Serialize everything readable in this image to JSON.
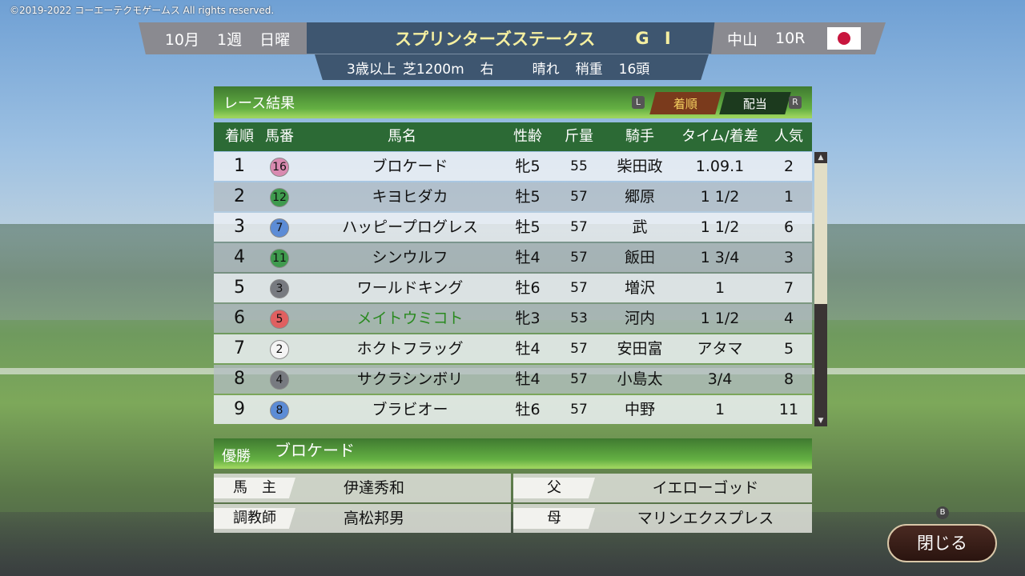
{
  "copyright": "©2019-2022 コーエーテクモゲームス All rights reserved.",
  "header": {
    "month": "10月",
    "week": "1週",
    "day": "日曜",
    "race_name": "スプリンターズステークス",
    "grade": "G I",
    "conditions": {
      "age": "3歳以上",
      "surface": "芝1200m",
      "direction": "右",
      "weather": "晴れ",
      "going": "稍重",
      "runners": "16頭"
    },
    "venue": "中山",
    "race_no": "10R",
    "flag": "japan-flag"
  },
  "panel": {
    "title": "レース結果",
    "btn_l": "L",
    "btn_r": "R",
    "tabs": [
      {
        "label": "着順",
        "active": true
      },
      {
        "label": "配当",
        "active": false
      }
    ]
  },
  "table": {
    "headers": [
      "着順",
      "馬番",
      "馬名",
      "性齢",
      "斤量",
      "騎手",
      "タイム/着差",
      "人気"
    ],
    "rows": [
      {
        "pos": "1",
        "no": "16",
        "color": "#d98ab0",
        "name": "ブロケード",
        "sexage": "牝5",
        "weight": "55",
        "jockey": "柴田政",
        "margin": "1.09.1",
        "pop": "2"
      },
      {
        "pos": "2",
        "no": "12",
        "color": "#3f9a4e",
        "name": "キヨヒダカ",
        "sexage": "牡5",
        "weight": "57",
        "jockey": "郷原",
        "margin": "1 1/2",
        "pop": "1"
      },
      {
        "pos": "3",
        "no": "7",
        "color": "#5c8cd6",
        "name": "ハッピープログレス",
        "sexage": "牡5",
        "weight": "57",
        "jockey": "武",
        "margin": "1 1/2",
        "pop": "6"
      },
      {
        "pos": "4",
        "no": "11",
        "color": "#3f9a4e",
        "name": "シンウルフ",
        "sexage": "牡4",
        "weight": "57",
        "jockey": "飯田",
        "margin": "1 3/4",
        "pop": "3"
      },
      {
        "pos": "5",
        "no": "3",
        "color": "#777a80",
        "name": "ワールドキング",
        "sexage": "牡6",
        "weight": "57",
        "jockey": "増沢",
        "margin": "1",
        "pop": "7"
      },
      {
        "pos": "6",
        "no": "5",
        "color": "#e06060",
        "name": "メイトウミコト",
        "sexage": "牝3",
        "weight": "53",
        "jockey": "河内",
        "margin": "1 1/2",
        "pop": "4",
        "highlight": "#2a8a20"
      },
      {
        "pos": "7",
        "no": "2",
        "color": "#f4f4f4",
        "name": "ホクトフラッグ",
        "sexage": "牡4",
        "weight": "57",
        "jockey": "安田富",
        "margin": "アタマ",
        "pop": "5"
      },
      {
        "pos": "8",
        "no": "4",
        "color": "#777a80",
        "name": "サクラシンボリ",
        "sexage": "牡4",
        "weight": "57",
        "jockey": "小島太",
        "margin": "3/4",
        "pop": "8"
      },
      {
        "pos": "9",
        "no": "8",
        "color": "#5c8cd6",
        "name": "ブラビオー",
        "sexage": "牡6",
        "weight": "57",
        "jockey": "中野",
        "margin": "1",
        "pop": "11"
      }
    ]
  },
  "winner": {
    "label": "優勝",
    "name": "ブロケード",
    "owner_label": "馬　主",
    "owner": "伊達秀和",
    "trainer_label": "調教師",
    "trainer": "高松邦男",
    "sire_label": "父",
    "sire": "イエローゴッド",
    "dam_label": "母",
    "dam": "マリンエクスプレス"
  },
  "close": {
    "label": "閉じる",
    "button_hint": "B"
  }
}
